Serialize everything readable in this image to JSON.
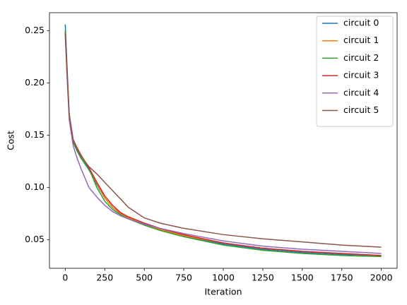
{
  "chart_data": {
    "type": "line",
    "xlabel": "Iteration",
    "ylabel": "Cost",
    "x": [
      0,
      10,
      25,
      50,
      75,
      100,
      150,
      200,
      250,
      300,
      350,
      400,
      500,
      600,
      750,
      1000,
      1250,
      1500,
      1750,
      2000
    ],
    "series": [
      {
        "name": "circuit 0",
        "color": "#1f77b4",
        "values": [
          0.256,
          0.22,
          0.17,
          0.145,
          0.135,
          0.128,
          0.117,
          0.103,
          0.09,
          0.081,
          0.075,
          0.071,
          0.065,
          0.06,
          0.054,
          0.046,
          0.041,
          0.038,
          0.036,
          0.035
        ]
      },
      {
        "name": "circuit 1",
        "color": "#ff7f0e",
        "values": [
          0.25,
          0.215,
          0.17,
          0.145,
          0.136,
          0.129,
          0.118,
          0.104,
          0.09,
          0.081,
          0.075,
          0.071,
          0.065,
          0.06,
          0.054,
          0.047,
          0.042,
          0.039,
          0.037,
          0.035
        ]
      },
      {
        "name": "circuit 2",
        "color": "#2ca02c",
        "values": [
          0.25,
          0.215,
          0.168,
          0.143,
          0.135,
          0.128,
          0.118,
          0.1,
          0.087,
          0.079,
          0.074,
          0.07,
          0.064,
          0.059,
          0.053,
          0.045,
          0.04,
          0.037,
          0.035,
          0.034
        ]
      },
      {
        "name": "circuit 3",
        "color": "#d62728",
        "values": [
          0.248,
          0.215,
          0.17,
          0.146,
          0.138,
          0.131,
          0.119,
          0.105,
          0.092,
          0.083,
          0.076,
          0.072,
          0.066,
          0.061,
          0.055,
          0.047,
          0.042,
          0.039,
          0.037,
          0.035
        ]
      },
      {
        "name": "circuit 4",
        "color": "#9467bd",
        "values": [
          0.245,
          0.21,
          0.165,
          0.14,
          0.128,
          0.118,
          0.1,
          0.091,
          0.083,
          0.077,
          0.073,
          0.07,
          0.065,
          0.061,
          0.056,
          0.049,
          0.044,
          0.041,
          0.039,
          0.037
        ]
      },
      {
        "name": "circuit 5",
        "color": "#8c564b",
        "values": [
          0.248,
          0.215,
          0.17,
          0.145,
          0.137,
          0.13,
          0.12,
          0.113,
          0.105,
          0.097,
          0.089,
          0.081,
          0.071,
          0.066,
          0.061,
          0.055,
          0.051,
          0.048,
          0.045,
          0.043
        ]
      }
    ],
    "xlim": [
      -100,
      2100
    ],
    "xticks": [
      0,
      250,
      500,
      750,
      1000,
      1250,
      1500,
      1750,
      2000
    ],
    "ylim": [
      0.0228,
      0.2672
    ],
    "yticks": [
      0.05,
      {
        "value": 0.1,
        "label": "0.10"
      },
      0.15,
      {
        "value": 0.2,
        "label": "0.20"
      },
      0.25
    ],
    "grid": false,
    "legend": "upper-right"
  }
}
